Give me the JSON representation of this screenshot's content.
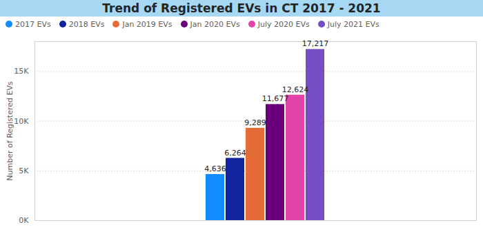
{
  "chart_data": {
    "type": "bar",
    "title": "Trend of Registered EVs in CT 2017 - 2021",
    "y_label": "Number of Registered EVs",
    "categories": [
      "2017 EVs",
      "2018 EVs",
      "Jan 2019 EVs",
      "Jan 2020 EVs",
      "July 2020 EVs",
      "July 2021 EVs"
    ],
    "values": [
      4636,
      6264,
      9289,
      11677,
      12624,
      17217
    ],
    "value_labels": [
      "4,636",
      "6,264",
      "9,289",
      "11,677",
      "12,624",
      "17,217"
    ],
    "colors": [
      "#118dff",
      "#12239e",
      "#e66c37",
      "#6b007b",
      "#e044a7",
      "#744ec2"
    ],
    "ylim": [
      0,
      18000
    ],
    "yticks": [
      {
        "value": 0,
        "label": "0K"
      },
      {
        "value": 5000,
        "label": "5K"
      },
      {
        "value": 10000,
        "label": "10K"
      },
      {
        "value": 15000,
        "label": "15K"
      }
    ],
    "grid": true,
    "data_labels": true,
    "legend": "top-left",
    "tick_labels": "y"
  }
}
